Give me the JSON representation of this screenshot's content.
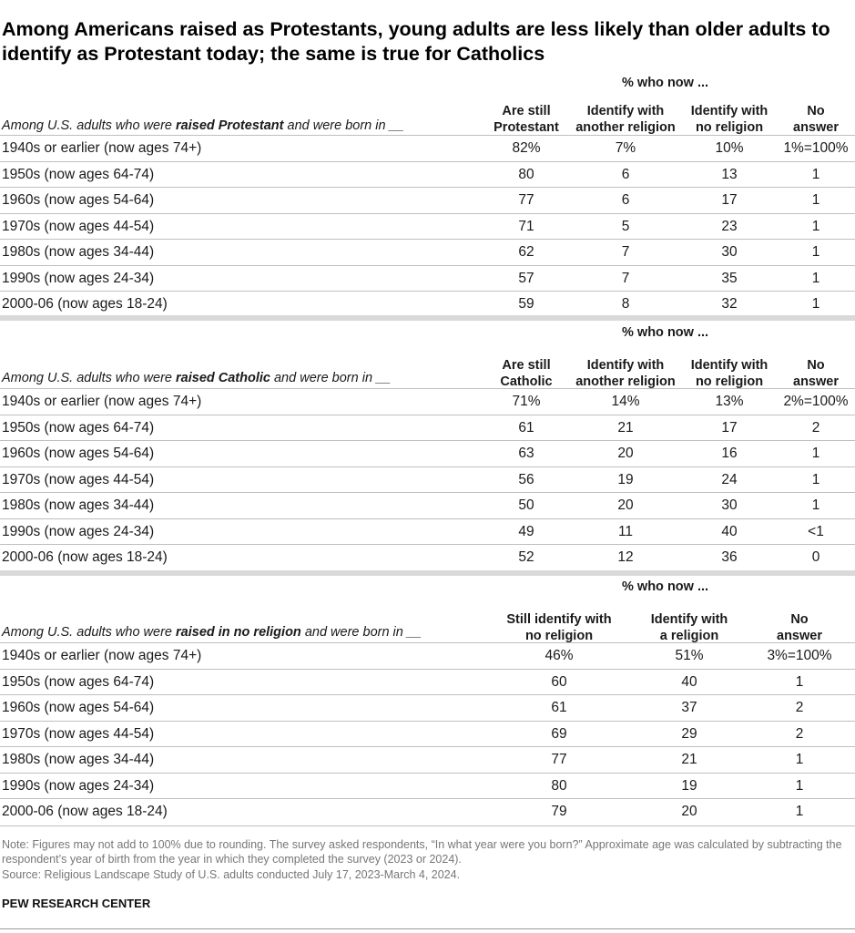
{
  "title": "Among Americans raised as Protestants, young adults are less likely than older adults to identify as Protestant today; the same is true for Catholics",
  "chart_data": [
    {
      "type": "table",
      "pct_header": "% who now ...",
      "intro_pre": "Among U.S. adults who were ",
      "intro_bold": "raised Protestant",
      "intro_post": " and were born in __",
      "columns": [
        "Are still\nProtestant",
        "Identify with\nanother religion",
        "Identify with\nno religion",
        "No\nanswer"
      ],
      "rows": [
        {
          "label": "1940s or earlier (now ages 74+)",
          "values": [
            "82%",
            "7%",
            "10%",
            "1%=100%"
          ]
        },
        {
          "label": "1950s (now ages 64-74)",
          "values": [
            "80",
            "6",
            "13",
            "1"
          ]
        },
        {
          "label": "1960s (now ages 54-64)",
          "values": [
            "77",
            "6",
            "17",
            "1"
          ]
        },
        {
          "label": "1970s (now ages 44-54)",
          "values": [
            "71",
            "5",
            "23",
            "1"
          ]
        },
        {
          "label": "1980s (now ages 34-44)",
          "values": [
            "62",
            "7",
            "30",
            "1"
          ]
        },
        {
          "label": "1990s (now ages 24-34)",
          "values": [
            "57",
            "7",
            "35",
            "1"
          ]
        },
        {
          "label": "2000-06 (now ages 18-24)",
          "values": [
            "59",
            "8",
            "32",
            "1"
          ]
        }
      ]
    },
    {
      "type": "table",
      "pct_header": "% who now ...",
      "intro_pre": "Among U.S. adults who were ",
      "intro_bold": "raised Catholic",
      "intro_post": " and were born in __",
      "columns": [
        "Are still\nCatholic",
        "Identify with\nanother religion",
        "Identify with\nno religion",
        "No\nanswer"
      ],
      "rows": [
        {
          "label": "1940s or earlier (now ages 74+)",
          "values": [
            "71%",
            "14%",
            "13%",
            "2%=100%"
          ]
        },
        {
          "label": "1950s (now ages 64-74)",
          "values": [
            "61",
            "21",
            "17",
            "2"
          ]
        },
        {
          "label": "1960s (now ages 54-64)",
          "values": [
            "63",
            "20",
            "16",
            "1"
          ]
        },
        {
          "label": "1970s (now ages 44-54)",
          "values": [
            "56",
            "19",
            "24",
            "1"
          ]
        },
        {
          "label": "1980s (now ages 34-44)",
          "values": [
            "50",
            "20",
            "30",
            "1"
          ]
        },
        {
          "label": "1990s (now ages 24-34)",
          "values": [
            "49",
            "11",
            "40",
            "<1"
          ]
        },
        {
          "label": "2000-06 (now ages 18-24)",
          "values": [
            "52",
            "12",
            "36",
            "0"
          ]
        }
      ]
    },
    {
      "type": "table",
      "pct_header": "% who now ...",
      "intro_pre": "Among U.S. adults who were ",
      "intro_bold": "raised in no religion",
      "intro_post": " and were born in __",
      "columns": [
        "Still identify with\nno religion",
        "Identify with\na religion",
        "No\nanswer"
      ],
      "rows": [
        {
          "label": "1940s or earlier (now ages 74+)",
          "values": [
            "46%",
            "51%",
            "3%=100%"
          ]
        },
        {
          "label": "1950s (now ages 64-74)",
          "values": [
            "60",
            "40",
            "1"
          ]
        },
        {
          "label": "1960s (now ages 54-64)",
          "values": [
            "61",
            "37",
            "2"
          ]
        },
        {
          "label": "1970s (now ages 44-54)",
          "values": [
            "69",
            "29",
            "2"
          ]
        },
        {
          "label": "1980s (now ages 34-44)",
          "values": [
            "77",
            "21",
            "1"
          ]
        },
        {
          "label": "1990s (now ages 24-34)",
          "values": [
            "80",
            "19",
            "1"
          ]
        },
        {
          "label": "2000-06 (now ages 18-24)",
          "values": [
            "79",
            "20",
            "1"
          ]
        }
      ]
    }
  ],
  "note": "Note: Figures may not add to 100% due to rounding. The survey asked respondents, “In what year were you born?” Approximate age was calculated by subtracting the respondent’s year of birth from the year in which they completed the survey (2023 or 2024).",
  "source": "Source: Religious Landscape Study of U.S. adults conducted July 17, 2023-March 4, 2024.",
  "brand": "PEW RESEARCH CENTER",
  "colors": {
    "rule": "#d9d9d9",
    "row_line": "#bfbfbf",
    "note_text": "#777777"
  }
}
